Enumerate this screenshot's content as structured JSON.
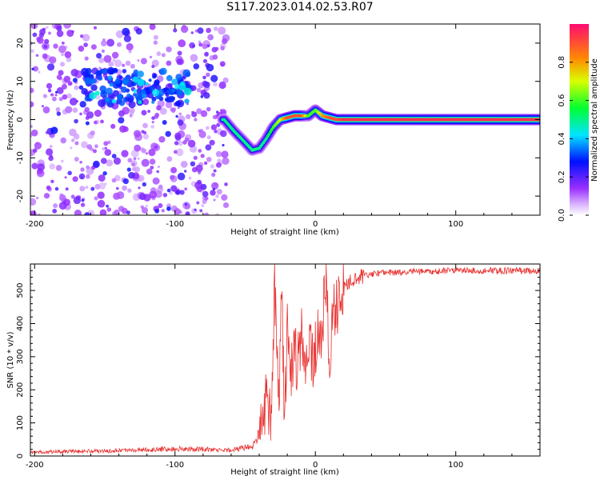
{
  "title": "S117.2023.014.02.53.R07",
  "chart_data": [
    {
      "type": "heatmap",
      "title": "S117.2023.014.02.53.R07",
      "xlabel": "Height of straight line (km)",
      "ylabel": "Frequency (Hz)",
      "xlim": [
        -203,
        160
      ],
      "ylim": [
        -25,
        25
      ],
      "xticks": [
        -200,
        -100,
        0,
        100
      ],
      "yticks": [
        -20,
        -10,
        0,
        10,
        20
      ],
      "colorbar": {
        "label": "Normalized spectral amplitude",
        "range": [
          0,
          1
        ],
        "ticks": [
          0.0,
          0.2,
          0.4,
          0.6,
          0.8
        ],
        "colormap": [
          "#ffffff",
          "#9b30ff",
          "#0000ff",
          "#00ffff",
          "#00ff00",
          "#ffff00",
          "#ff8000",
          "#ff0080"
        ]
      },
      "ridge": {
        "description_x": [
          -65,
          -58,
          -50,
          -45,
          -40,
          -35,
          -30,
          -25,
          -20,
          -15,
          -10,
          -5,
          0,
          5,
          10,
          15,
          20,
          160
        ],
        "frequency_hz": [
          0,
          -3,
          -6,
          -8,
          -7.5,
          -5,
          -2,
          0,
          0.5,
          1,
          1,
          1,
          2.5,
          1,
          0.5,
          0,
          0,
          0
        ],
        "amplitude": [
          0.5,
          0.5,
          0.5,
          0.5,
          0.5,
          0.5,
          0.6,
          0.7,
          0.9,
          0.9,
          0.9,
          0.6,
          0.6,
          0.8,
          0.9,
          0.9,
          0.95,
          0.95
        ]
      },
      "grid": false
    },
    {
      "type": "line",
      "xlabel": "Height of straight line (km)",
      "ylabel": "SNR (10 * v/v)",
      "xlim": [
        -203,
        160
      ],
      "ylim": [
        0,
        580
      ],
      "xticks": [
        -200,
        -100,
        0,
        100
      ],
      "yticks": [
        0,
        100,
        200,
        300,
        400,
        500
      ],
      "series": [
        {
          "color": "#e8312f",
          "x": [
            -203,
            -150,
            -100,
            -60,
            -45,
            -38,
            -35,
            -32,
            -29,
            -26,
            -24,
            -22,
            -20,
            -18,
            -15,
            -12,
            -10,
            -7,
            -5,
            -2,
            0,
            3,
            5,
            8,
            10,
            12,
            15,
            18,
            20,
            25,
            30,
            40,
            60,
            100,
            160
          ],
          "values": [
            12,
            15,
            22,
            18,
            30,
            80,
            200,
            90,
            520,
            150,
            480,
            100,
            380,
            220,
            300,
            280,
            330,
            250,
            350,
            280,
            340,
            360,
            380,
            560,
            180,
            420,
            450,
            470,
            500,
            530,
            540,
            550,
            555,
            560,
            560
          ]
        }
      ],
      "grid": false
    }
  ]
}
